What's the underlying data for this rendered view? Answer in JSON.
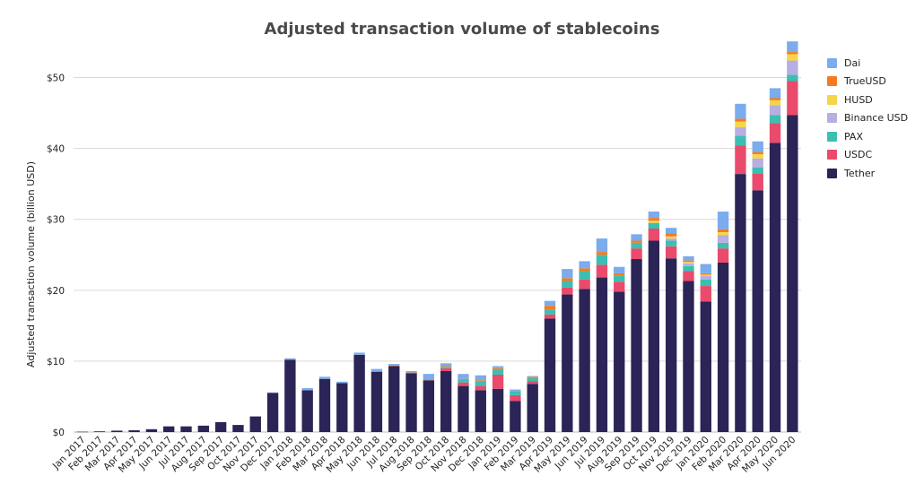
{
  "chart_data": {
    "type": "bar",
    "stacked": true,
    "title": "Adjusted transaction volume of stablecoins",
    "xlabel": "",
    "ylabel": "Adjusted transaction volume (billion USD)",
    "ylim": [
      0,
      55
    ],
    "yticks": [
      0,
      10,
      20,
      30,
      40,
      50
    ],
    "ytick_labels": [
      "$0",
      "$10",
      "$20",
      "$30",
      "$40",
      "$50"
    ],
    "grid": true,
    "legend_position": "right",
    "categories": [
      "Jan 2017",
      "Feb 2017",
      "Mar 2017",
      "Apr 2017",
      "May 2017",
      "Jun 2017",
      "Jul 2017",
      "Aug 2017",
      "Sep 2017",
      "Oct 2017",
      "Nov 2017",
      "Dec 2017",
      "Jan 2018",
      "Feb 2018",
      "Mar 2018",
      "Apr 2018",
      "May 2018",
      "Jun 2018",
      "Jul 2018",
      "Aug 2018",
      "Sep 2018",
      "Oct 2018",
      "Nov 2018",
      "Dec 2018",
      "Jan 2019",
      "Feb 2019",
      "Mar 2019",
      "Apr 2019",
      "May 2019",
      "Jun 2019",
      "Jul 2019",
      "Aug 2019",
      "Sep 2019",
      "Oct 2019",
      "Nov 2019",
      "Dec 2019",
      "Jan 2020",
      "Feb 2020",
      "Mar 2020",
      "Apr 2020",
      "May 2020",
      "Jun 2020"
    ],
    "series": [
      {
        "name": "Tether",
        "color": "#2b2456",
        "values": [
          0.05,
          0.1,
          0.2,
          0.25,
          0.4,
          0.8,
          0.8,
          0.9,
          1.4,
          1.0,
          2.2,
          5.5,
          10.2,
          5.9,
          7.5,
          6.9,
          10.9,
          8.5,
          9.3,
          8.3,
          7.3,
          8.6,
          6.5,
          5.9,
          6.1,
          4.4,
          6.8,
          16.0,
          19.4,
          20.2,
          21.8,
          19.8,
          24.4,
          27.0,
          24.5,
          21.3,
          18.4,
          23.9,
          36.4,
          34.1,
          40.8,
          44.7
        ]
      },
      {
        "name": "USDC",
        "color": "#ea4a6b",
        "values": [
          0,
          0,
          0,
          0,
          0,
          0,
          0,
          0,
          0,
          0,
          0,
          0,
          0,
          0,
          0,
          0,
          0,
          0,
          0,
          0,
          0,
          0.4,
          0.5,
          0.6,
          2.0,
          0.8,
          0.4,
          0.6,
          1.0,
          1.3,
          1.8,
          1.4,
          1.5,
          1.7,
          1.7,
          1.4,
          2.2,
          2.0,
          4.0,
          2.4,
          2.8,
          4.8
        ]
      },
      {
        "name": "PAX",
        "color": "#3bbfb2",
        "values": [
          0,
          0,
          0,
          0,
          0,
          0,
          0,
          0,
          0,
          0,
          0,
          0,
          0,
          0,
          0,
          0,
          0,
          0,
          0,
          0,
          0,
          0.2,
          0.4,
          0.7,
          0.7,
          0.5,
          0.4,
          0.7,
          0.9,
          1.2,
          1.4,
          0.9,
          0.8,
          0.8,
          0.8,
          0.7,
          0.9,
          0.8,
          1.4,
          0.8,
          1.1,
          0.9
        ]
      },
      {
        "name": "Binance USD",
        "color": "#b7aee2",
        "values": [
          0,
          0,
          0,
          0,
          0,
          0,
          0,
          0,
          0,
          0,
          0,
          0,
          0,
          0,
          0,
          0,
          0,
          0,
          0,
          0,
          0,
          0,
          0,
          0,
          0,
          0,
          0,
          0,
          0,
          0,
          0,
          0,
          0,
          0,
          0.3,
          0.4,
          0.5,
          1.1,
          1.2,
          1.3,
          1.4,
          2.0
        ]
      },
      {
        "name": "HUSD",
        "color": "#f7d54a",
        "values": [
          0,
          0,
          0,
          0,
          0,
          0,
          0,
          0,
          0,
          0,
          0,
          0,
          0,
          0,
          0,
          0,
          0,
          0,
          0,
          0,
          0,
          0,
          0,
          0,
          0,
          0,
          0,
          0,
          0,
          0,
          0,
          0,
          0,
          0.3,
          0.3,
          0.2,
          0.2,
          0.4,
          0.8,
          0.6,
          0.7,
          0.9
        ]
      },
      {
        "name": "TrueUSD",
        "color": "#f57a1f",
        "values": [
          0,
          0,
          0,
          0,
          0,
          0,
          0,
          0,
          0,
          0,
          0,
          0,
          0,
          0,
          0,
          0,
          0,
          0.1,
          0.1,
          0.1,
          0.1,
          0.1,
          0.1,
          0.1,
          0.2,
          0.1,
          0.2,
          0.5,
          0.4,
          0.4,
          0.4,
          0.3,
          0.3,
          0.4,
          0.4,
          0.2,
          0.2,
          0.4,
          0.4,
          0.3,
          0.3,
          0.3
        ]
      },
      {
        "name": "Dai",
        "color": "#7aacee",
        "values": [
          0,
          0,
          0,
          0,
          0,
          0,
          0,
          0,
          0,
          0,
          0,
          0.1,
          0.2,
          0.3,
          0.3,
          0.2,
          0.3,
          0.3,
          0.2,
          0.2,
          0.8,
          0.4,
          0.7,
          0.7,
          0.3,
          0.2,
          0.1,
          0.7,
          1.3,
          1.0,
          1.9,
          0.9,
          0.9,
          0.9,
          0.8,
          0.6,
          1.3,
          2.5,
          2.1,
          1.5,
          1.4,
          1.5
        ]
      }
    ]
  }
}
